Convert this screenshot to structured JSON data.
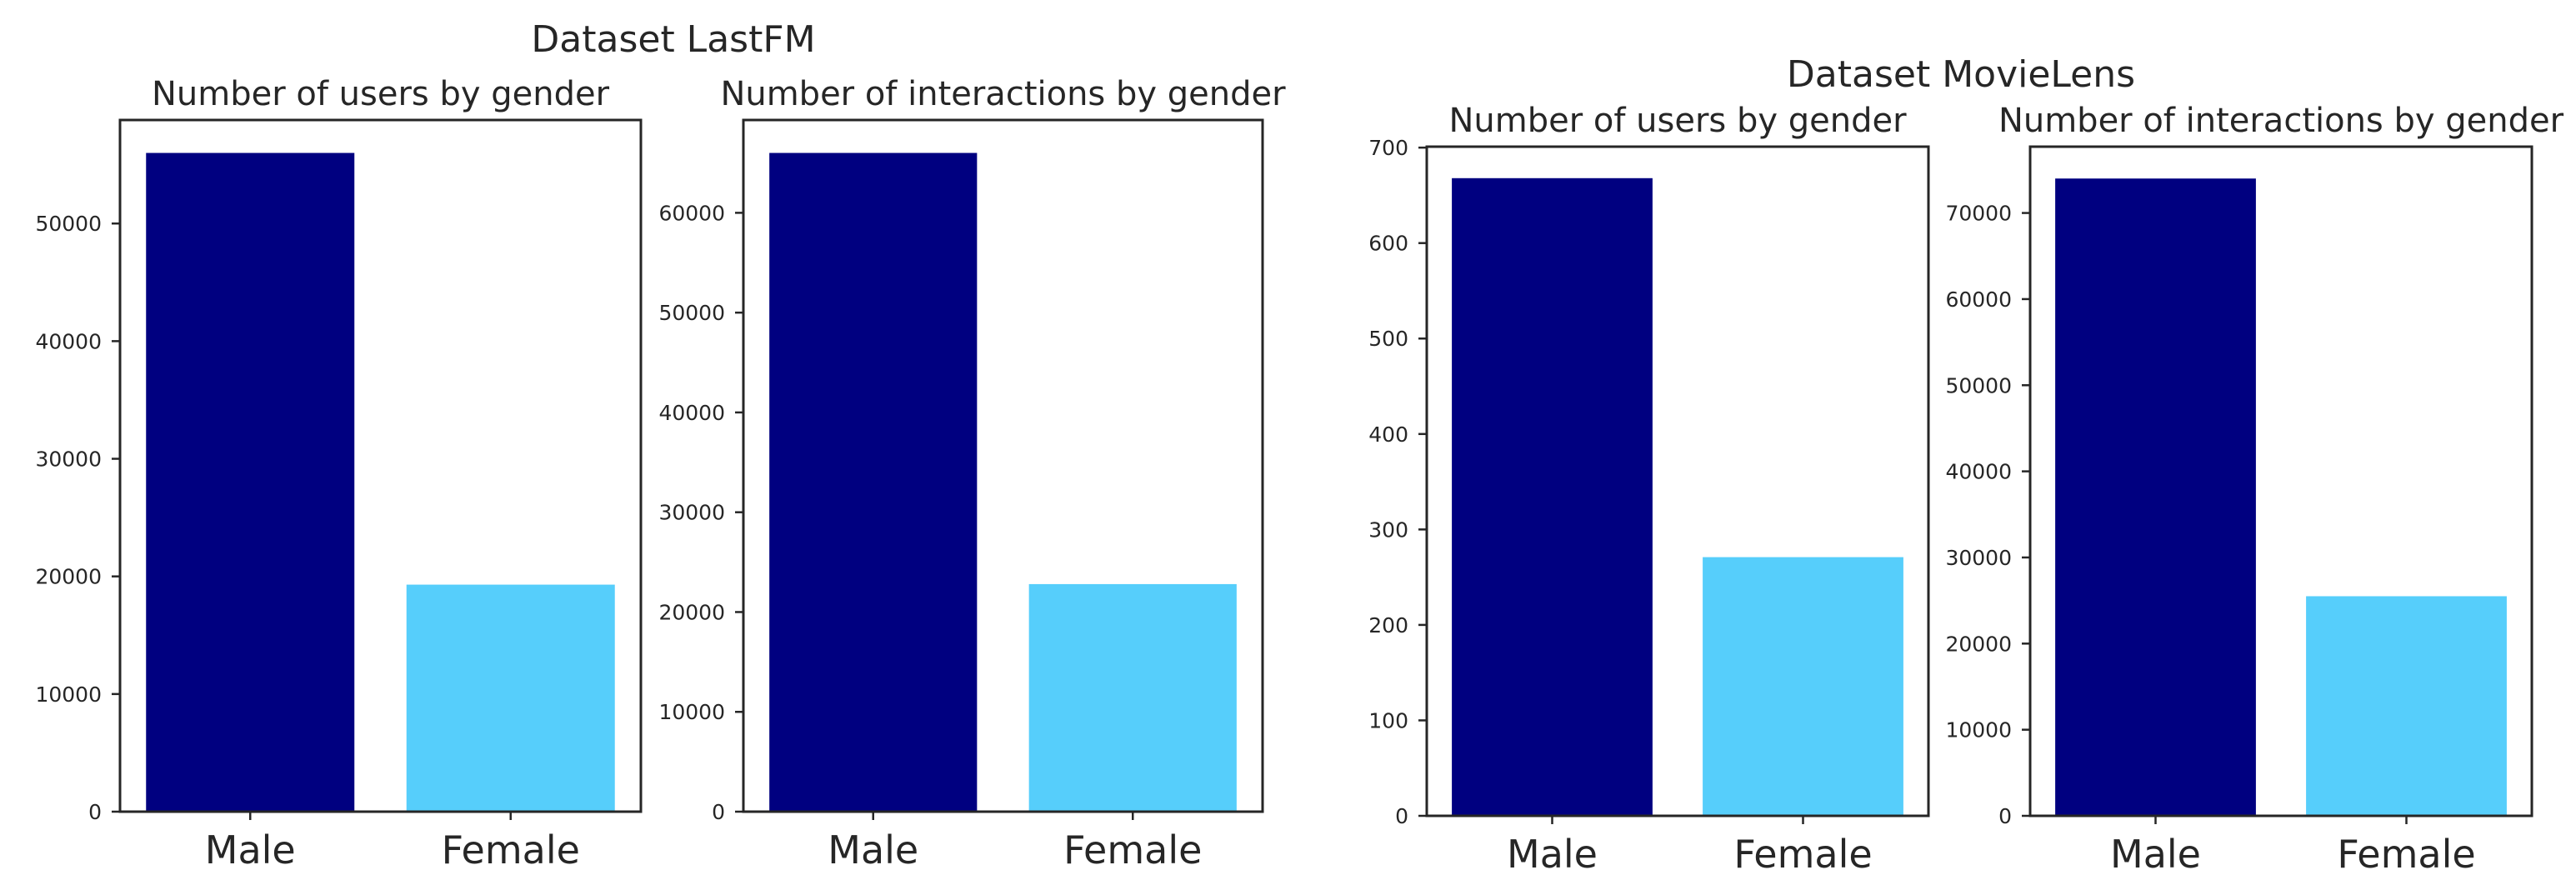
{
  "colors": {
    "male": "#000080",
    "female": "#56CEFB",
    "axis": "#262626"
  },
  "groups": [
    {
      "title": "Dataset LastFM"
    },
    {
      "title": "Dataset MovieLens"
    }
  ],
  "chart_data": [
    {
      "type": "bar",
      "group": 0,
      "title": "Number of users by gender",
      "categories": [
        "Male",
        "Female"
      ],
      "values": [
        56000,
        19300
      ],
      "ylim": [
        0,
        58800
      ],
      "yticks": [
        0,
        10000,
        20000,
        30000,
        40000,
        50000
      ],
      "xlabel": "",
      "ylabel": ""
    },
    {
      "type": "bar",
      "group": 0,
      "title": "Number of interactions by gender",
      "categories": [
        "Male",
        "Female"
      ],
      "values": [
        66000,
        22800
      ],
      "ylim": [
        0,
        69300
      ],
      "yticks": [
        0,
        10000,
        20000,
        30000,
        40000,
        50000,
        60000
      ],
      "xlabel": "",
      "ylabel": ""
    },
    {
      "type": "bar",
      "group": 1,
      "title": "Number of users by gender",
      "categories": [
        "Male",
        "Female"
      ],
      "values": [
        668,
        271
      ],
      "ylim": [
        0,
        701
      ],
      "yticks": [
        0,
        100,
        200,
        300,
        400,
        500,
        600,
        700
      ],
      "xlabel": "",
      "ylabel": ""
    },
    {
      "type": "bar",
      "group": 1,
      "title": "Number of interactions by gender",
      "categories": [
        "Male",
        "Female"
      ],
      "values": [
        74000,
        25500
      ],
      "ylim": [
        0,
        77700
      ],
      "yticks": [
        0,
        10000,
        20000,
        30000,
        40000,
        50000,
        60000,
        70000
      ],
      "xlabel": "",
      "ylabel": ""
    }
  ]
}
